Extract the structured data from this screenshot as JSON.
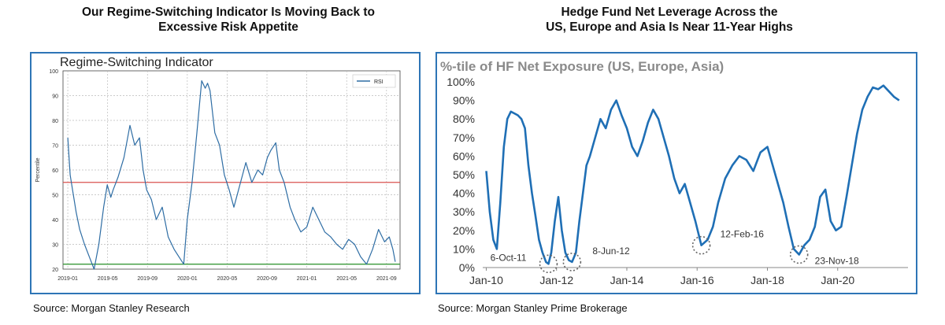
{
  "panels": [
    {
      "title_line1": "Our Regime-Switching Indicator Is Moving Back to",
      "title_line2": "Excessive Risk Appetite",
      "source": "Source: Morgan Stanley Research",
      "chart_data": {
        "type": "line",
        "title": "Regime-Switching Indicator",
        "ylabel": "Percentile",
        "xlabel": "",
        "ylim": [
          20,
          100
        ],
        "y_ticks": [
          "20",
          "30",
          "40",
          "50",
          "60",
          "70",
          "80",
          "90",
          "100"
        ],
        "x_ticks": [
          "2019-01",
          "2019-05",
          "2019-09",
          "2020-01",
          "2020-05",
          "2020-09",
          "2021-01",
          "2021-05",
          "2021-09"
        ],
        "grid": true,
        "legend": "top-right",
        "series": [
          {
            "name": "RSI",
            "color": "#2e6da4",
            "x": [
              2019.0,
              2019.02,
              2019.04,
              2019.07,
              2019.1,
              2019.14,
              2019.18,
              2019.22,
              2019.26,
              2019.3,
              2019.33,
              2019.36,
              2019.38,
              2019.42,
              2019.47,
              2019.52,
              2019.56,
              2019.6,
              2019.63,
              2019.66,
              2019.7,
              2019.74,
              2019.79,
              2019.84,
              2019.89,
              2019.93,
              2019.97,
              2020.0,
              2020.04,
              2020.08,
              2020.12,
              2020.15,
              2020.17,
              2020.19,
              2020.23,
              2020.27,
              2020.31,
              2020.35,
              2020.39,
              2020.44,
              2020.49,
              2020.54,
              2020.59,
              2020.63,
              2020.67,
              2020.7,
              2020.74,
              2020.77,
              2020.81,
              2020.86,
              2020.9,
              2020.95,
              2021.0,
              2021.05,
              2021.1,
              2021.15,
              2021.2,
              2021.25,
              2021.3,
              2021.35,
              2021.4,
              2021.45,
              2021.5,
              2021.55,
              2021.6,
              2021.65,
              2021.69,
              2021.72,
              2021.74
            ],
            "y": [
              73,
              58,
              52,
              43,
              36,
              30,
              25,
              20,
              30,
              45,
              54,
              49,
              52,
              57,
              65,
              78,
              70,
              73,
              60,
              52,
              48,
              40,
              45,
              33,
              28,
              25,
              22,
              40,
              55,
              75,
              96,
              93,
              95,
              92,
              75,
              70,
              58,
              52,
              45,
              54,
              63,
              55,
              60,
              58,
              65,
              68,
              71,
              60,
              55,
              45,
              40,
              35,
              37,
              45,
              40,
              35,
              33,
              30,
              28,
              32,
              30,
              25,
              22,
              28,
              36,
              31,
              33,
              28,
              23
            ]
          }
        ],
        "reference_lines": [
          {
            "name": "upper",
            "y": 55,
            "color": "#d9534f"
          },
          {
            "name": "lower",
            "y": 22,
            "color": "#3a9a3a"
          }
        ]
      }
    },
    {
      "title_line1": "Hedge Fund Net Leverage Across the",
      "title_line2": "US, Europe and Asia Is Near 11-Year Highs",
      "source": "Source: Morgan Stanley Prime Brokerage",
      "chart_data": {
        "type": "line",
        "title": "%-tile of HF Net Exposure (US, Europe, Asia)",
        "xlabel": "",
        "ylabel": "",
        "ylim": [
          0,
          100
        ],
        "y_ticks": [
          "0%",
          "10%",
          "20%",
          "30%",
          "40%",
          "50%",
          "60%",
          "70%",
          "80%",
          "90%",
          "100%"
        ],
        "x_ticks": [
          "Jan-10",
          "Jan-12",
          "Jan-14",
          "Jan-16",
          "Jan-18",
          "Jan-20"
        ],
        "grid": false,
        "series": [
          {
            "name": "",
            "color": "#1f6fb5",
            "x": [
              2010.0,
              2010.1,
              2010.2,
              2010.3,
              2010.4,
              2010.5,
              2010.6,
              2010.7,
              2010.8,
              2010.9,
              2011.0,
              2011.1,
              2011.2,
              2011.3,
              2011.4,
              2011.5,
              2011.6,
              2011.7,
              2011.77,
              2011.85,
              2011.95,
              2012.05,
              2012.15,
              2012.25,
              2012.35,
              2012.44,
              2012.55,
              2012.65,
              2012.75,
              2012.85,
              2012.95,
              2013.1,
              2013.25,
              2013.4,
              2013.55,
              2013.7,
              2013.85,
              2014.0,
              2014.15,
              2014.3,
              2014.45,
              2014.6,
              2014.75,
              2014.9,
              2015.05,
              2015.2,
              2015.35,
              2015.5,
              2015.65,
              2015.8,
              2015.95,
              2016.12,
              2016.3,
              2016.45,
              2016.6,
              2016.8,
              2017.0,
              2017.2,
              2017.4,
              2017.6,
              2017.8,
              2018.0,
              2018.15,
              2018.3,
              2018.45,
              2018.6,
              2018.75,
              2018.9,
              2019.05,
              2019.2,
              2019.35,
              2019.5,
              2019.65,
              2019.8,
              2019.95,
              2020.1,
              2020.25,
              2020.4,
              2020.55,
              2020.7,
              2020.85,
              2021.0,
              2021.15,
              2021.3,
              2021.45,
              2021.6,
              2021.75
            ],
            "y": [
              52,
              30,
              15,
              10,
              35,
              65,
              80,
              84,
              83,
              82,
              80,
              75,
              55,
              40,
              28,
              15,
              8,
              3,
              2,
              8,
              25,
              38,
              20,
              8,
              4,
              3,
              8,
              25,
              40,
              55,
              60,
              70,
              80,
              75,
              85,
              90,
              82,
              75,
              65,
              60,
              68,
              78,
              85,
              80,
              70,
              60,
              48,
              40,
              45,
              35,
              25,
              12,
              15,
              22,
              35,
              48,
              55,
              60,
              58,
              52,
              62,
              65,
              55,
              45,
              35,
              22,
              10,
              7,
              12,
              15,
              22,
              38,
              42,
              25,
              20,
              22,
              38,
              55,
              72,
              85,
              92,
              97,
              96,
              98,
              95,
              92,
              90
            ]
          }
        ],
        "annotations": [
          {
            "label": "6-Oct-11",
            "x": 2011.77,
            "y": 2
          },
          {
            "label": "8-Jun-12",
            "x": 2012.44,
            "y": 3
          },
          {
            "label": "12-Feb-16",
            "x": 2016.12,
            "y": 12
          },
          {
            "label": "23-Nov-18",
            "x": 2018.9,
            "y": 7
          }
        ]
      }
    }
  ]
}
